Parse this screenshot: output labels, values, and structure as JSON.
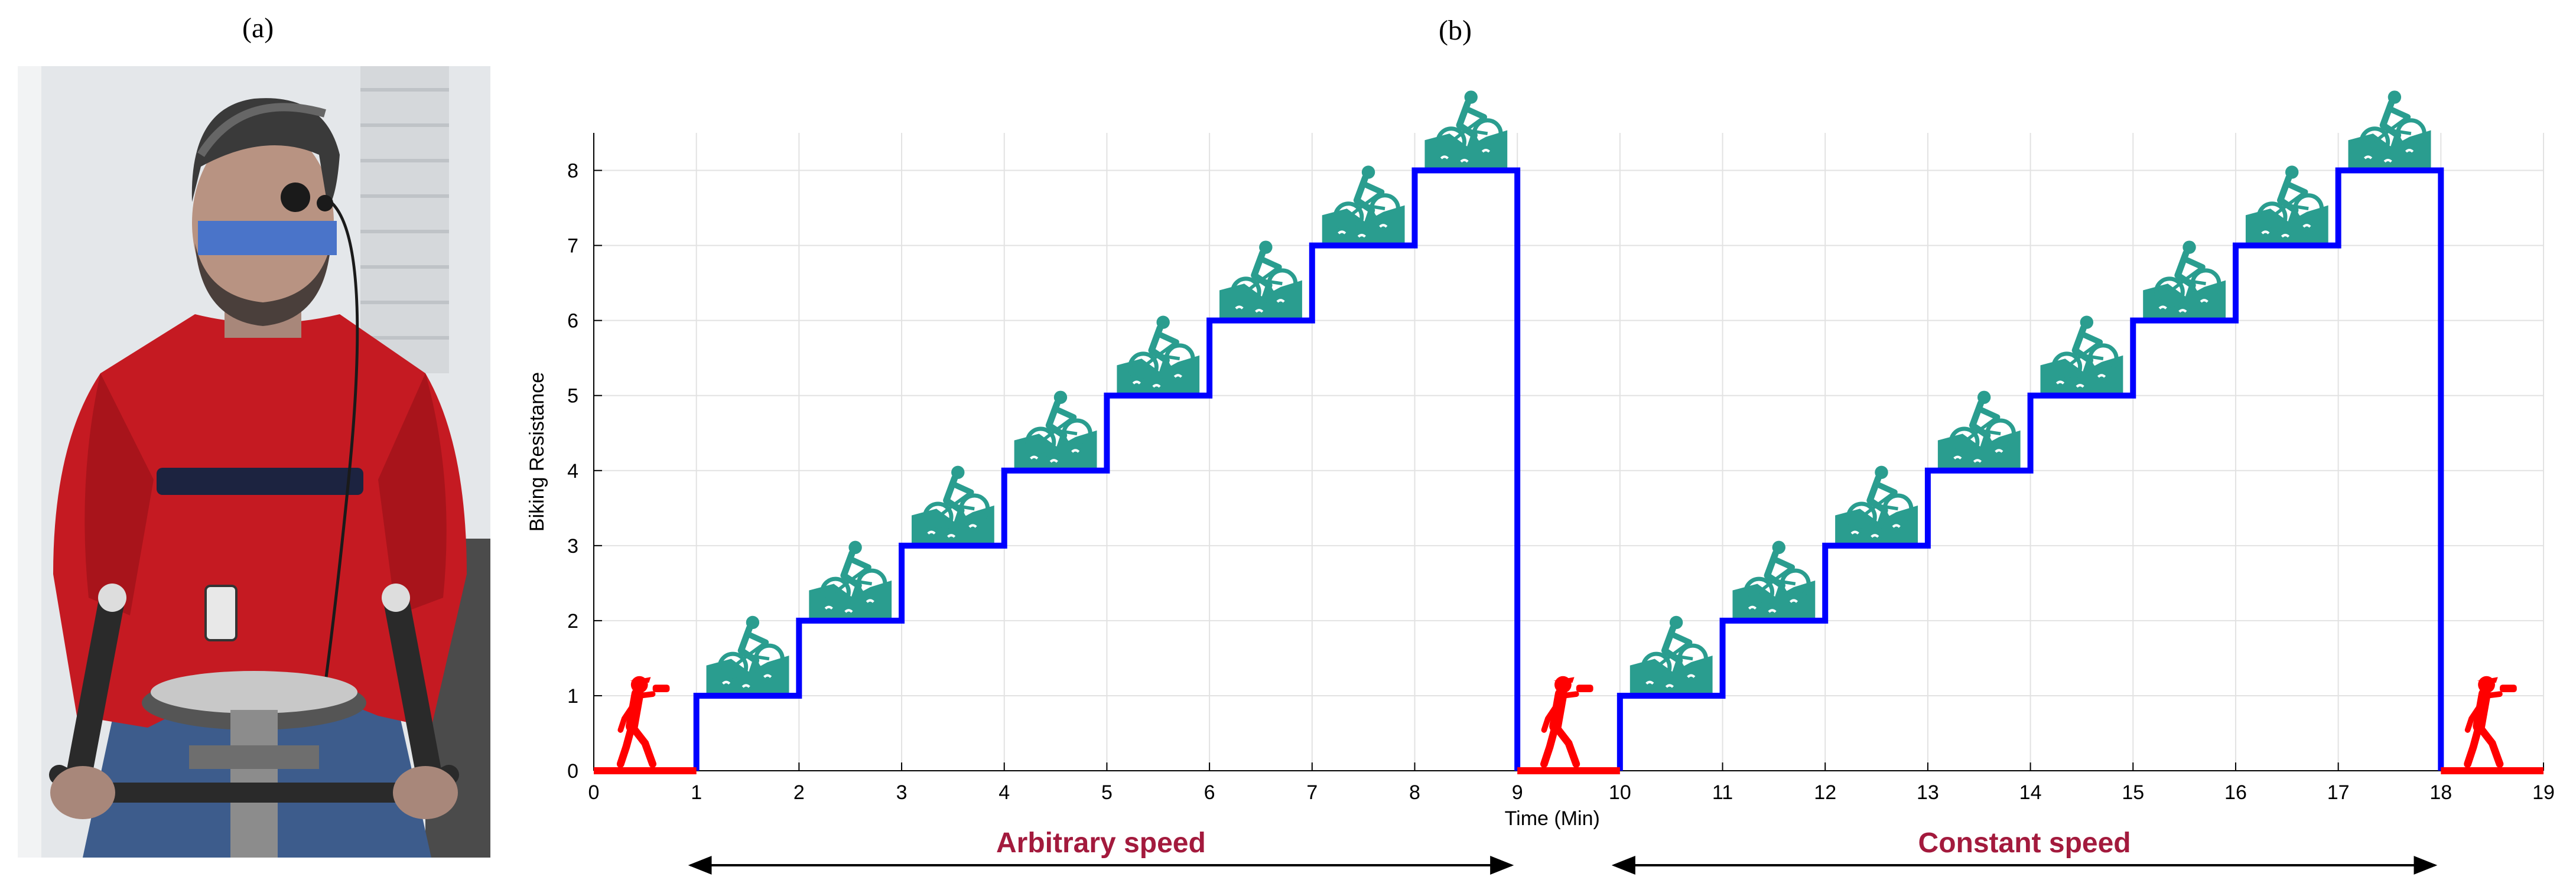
{
  "panels": {
    "a_label": "(a)",
    "b_label": "(b)"
  },
  "photo": {
    "description_icon": "cyclist-photo",
    "redaction_color": "#4A74C9",
    "sweater_color": "#C51A22"
  },
  "chart_data": {
    "type": "line",
    "title": "",
    "xlabel": "Time (Min)",
    "ylabel": "Biking Resistance",
    "xlim": [
      0,
      19
    ],
    "ylim": [
      0,
      8.5
    ],
    "xticks": [
      0,
      1,
      2,
      3,
      4,
      5,
      6,
      7,
      8,
      9,
      10,
      11,
      12,
      13,
      14,
      15,
      16,
      17,
      18,
      19
    ],
    "yticks": [
      0,
      1,
      2,
      3,
      4,
      5,
      6,
      7,
      8
    ],
    "grid": true,
    "series": [
      {
        "color": "#0000FF",
        "style": "step",
        "points": [
          [
            1,
            0
          ],
          [
            1,
            1
          ],
          [
            2,
            1
          ],
          [
            2,
            2
          ],
          [
            3,
            2
          ],
          [
            3,
            3
          ],
          [
            4,
            3
          ],
          [
            4,
            4
          ],
          [
            5,
            4
          ],
          [
            5,
            5
          ],
          [
            6,
            5
          ],
          [
            6,
            6
          ],
          [
            7,
            6
          ],
          [
            7,
            7
          ],
          [
            8,
            7
          ],
          [
            8,
            8
          ],
          [
            9,
            8
          ],
          [
            9,
            0
          ]
        ]
      },
      {
        "color": "#0000FF",
        "style": "step",
        "points": [
          [
            10,
            0
          ],
          [
            10,
            1
          ],
          [
            11,
            1
          ],
          [
            11,
            2
          ],
          [
            12,
            2
          ],
          [
            12,
            3
          ],
          [
            13,
            3
          ],
          [
            13,
            4
          ],
          [
            14,
            4
          ],
          [
            14,
            5
          ],
          [
            15,
            5
          ],
          [
            15,
            6
          ],
          [
            16,
            6
          ],
          [
            16,
            7
          ],
          [
            17,
            7
          ],
          [
            17,
            8
          ],
          [
            18,
            8
          ],
          [
            18,
            0
          ]
        ]
      },
      {
        "color": "#FF0000",
        "style": "rest",
        "segments": [
          [
            0,
            1
          ],
          [
            9,
            10
          ],
          [
            18,
            19
          ]
        ]
      }
    ],
    "phases": [
      {
        "label": "Arbitrary speed",
        "x_start": 1,
        "x_end": 9
      },
      {
        "label": "Constant speed",
        "x_start": 10,
        "x_end": 18
      }
    ],
    "icons": {
      "cyclist_icon": "uphill-cyclist-icon",
      "cyclist_color": "#2A9D8F",
      "cyclist_levels": [
        1,
        2,
        3,
        4,
        5,
        6,
        7,
        8
      ],
      "walker_icon": "walking-drinking-person-icon",
      "walker_color": "#FF0000"
    }
  }
}
